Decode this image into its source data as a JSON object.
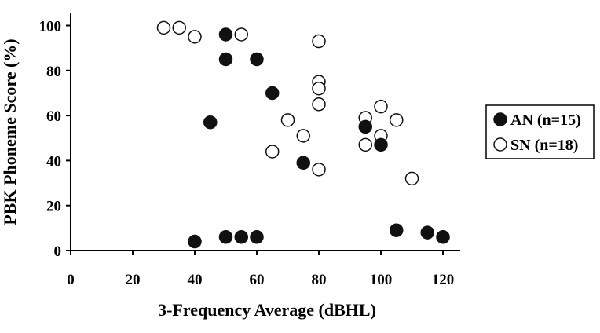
{
  "chart_data": {
    "type": "scatter",
    "title": "",
    "xlabel": "3-Frequency Average (dBHL)",
    "ylabel": "PBK Phoneme Score (%)",
    "xlim": [
      0,
      125
    ],
    "ylim": [
      0,
      105
    ],
    "xticks": [
      0,
      20,
      40,
      60,
      80,
      100,
      120
    ],
    "yticks": [
      0,
      20,
      40,
      60,
      80,
      100
    ],
    "grid": false,
    "legend_position": "right",
    "series": [
      {
        "name": "AN (n=15)",
        "marker": "filled-circle",
        "color": "#111111",
        "points": [
          {
            "x": 40,
            "y": 4
          },
          {
            "x": 45,
            "y": 57
          },
          {
            "x": 50,
            "y": 96
          },
          {
            "x": 50,
            "y": 85
          },
          {
            "x": 50,
            "y": 6
          },
          {
            "x": 55,
            "y": 6
          },
          {
            "x": 60,
            "y": 85
          },
          {
            "x": 60,
            "y": 6
          },
          {
            "x": 65,
            "y": 70
          },
          {
            "x": 75,
            "y": 39
          },
          {
            "x": 95,
            "y": 55
          },
          {
            "x": 100,
            "y": 47
          },
          {
            "x": 105,
            "y": 9
          },
          {
            "x": 115,
            "y": 8
          },
          {
            "x": 120,
            "y": 6
          }
        ]
      },
      {
        "name": "SN (n=18)",
        "marker": "open-circle",
        "color": "#ffffff",
        "points": [
          {
            "x": 30,
            "y": 99
          },
          {
            "x": 35,
            "y": 99
          },
          {
            "x": 40,
            "y": 95
          },
          {
            "x": 55,
            "y": 96
          },
          {
            "x": 65,
            "y": 44
          },
          {
            "x": 70,
            "y": 58
          },
          {
            "x": 75,
            "y": 51
          },
          {
            "x": 80,
            "y": 93
          },
          {
            "x": 80,
            "y": 75
          },
          {
            "x": 80,
            "y": 72
          },
          {
            "x": 80,
            "y": 65
          },
          {
            "x": 80,
            "y": 36
          },
          {
            "x": 95,
            "y": 59
          },
          {
            "x": 95,
            "y": 47
          },
          {
            "x": 100,
            "y": 64
          },
          {
            "x": 100,
            "y": 51
          },
          {
            "x": 105,
            "y": 58
          },
          {
            "x": 110,
            "y": 32
          }
        ]
      }
    ]
  }
}
